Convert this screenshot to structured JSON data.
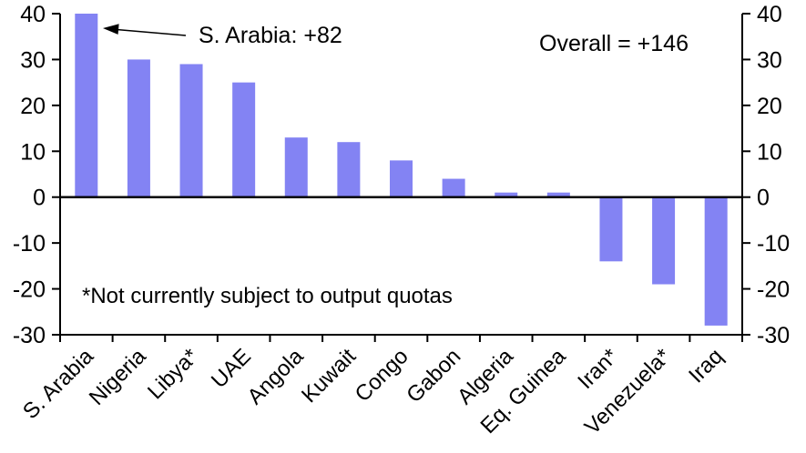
{
  "chart_data": {
    "type": "bar",
    "categories": [
      "S. Arabia",
      "Nigeria",
      "Libya*",
      "UAE",
      "Angola",
      "Kuwait",
      "Congo",
      "Gabon",
      "Algeria",
      "Eq. Guinea",
      "Iran*",
      "Venezuela*",
      "Iraq"
    ],
    "values": [
      82,
      30,
      29,
      25,
      13,
      12,
      8,
      4,
      1,
      1,
      -14,
      -19,
      -28
    ],
    "yticks": [
      40,
      30,
      20,
      10,
      0,
      -10,
      -20,
      -30
    ],
    "ylim": [
      -30,
      40
    ],
    "clip_values_at_ymax": true,
    "grid": false,
    "legend": false,
    "dual_y_axis": true,
    "bar_color": "#8383F3",
    "axis_color": "#000000",
    "callout": {
      "text": "S. Arabia: +82",
      "target_category": "S. Arabia"
    },
    "overall_label": "Overall = +146",
    "footnote": "*Not currently subject to output quotas"
  }
}
